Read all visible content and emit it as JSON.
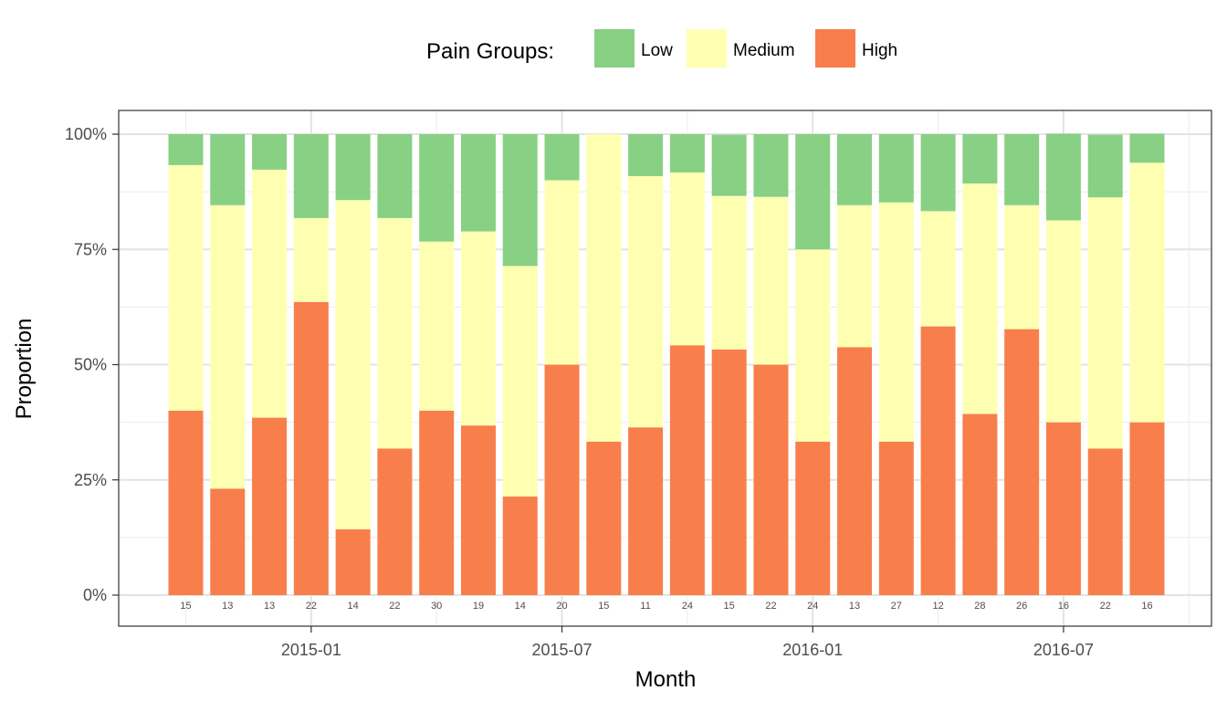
{
  "chart_data": {
    "type": "bar",
    "stacked": true,
    "legend": {
      "title": "Pain Groups:",
      "position": "top"
    },
    "xlabel": "Month",
    "ylabel": "Proportion",
    "ylim": [
      0,
      1
    ],
    "y_ticks": [
      "0%",
      "25%",
      "50%",
      "75%",
      "100%"
    ],
    "x_tick_labels": [
      "2015-01",
      "2015-07",
      "2016-01",
      "2016-07"
    ],
    "grid": true,
    "categories": [
      "2014-10",
      "2014-11",
      "2014-12",
      "2015-01",
      "2015-02",
      "2015-03",
      "2015-04",
      "2015-05",
      "2015-06",
      "2015-07",
      "2015-08",
      "2015-09",
      "2015-10",
      "2015-11",
      "2015-12",
      "2016-01",
      "2016-02",
      "2016-03",
      "2016-04",
      "2016-05",
      "2016-06",
      "2016-07",
      "2016-08",
      "2016-09"
    ],
    "counts": [
      15,
      13,
      13,
      22,
      14,
      22,
      30,
      19,
      14,
      20,
      15,
      11,
      24,
      15,
      22,
      24,
      13,
      27,
      12,
      28,
      26,
      16,
      22,
      16
    ],
    "series": [
      {
        "name": "High",
        "color": "#f87e4b",
        "values": [
          0.4,
          0.231,
          0.385,
          0.636,
          0.143,
          0.318,
          0.4,
          0.368,
          0.214,
          0.5,
          0.333,
          0.364,
          0.542,
          0.533,
          0.5,
          0.333,
          0.538,
          0.333,
          0.583,
          0.393,
          0.577,
          0.375,
          0.318,
          0.375
        ]
      },
      {
        "name": "Medium",
        "color": "#ffffb2",
        "values": [
          0.533,
          0.615,
          0.538,
          0.182,
          0.714,
          0.5,
          0.367,
          0.421,
          0.5,
          0.4,
          0.667,
          0.545,
          0.375,
          0.333,
          0.364,
          0.417,
          0.308,
          0.519,
          0.25,
          0.5,
          0.269,
          0.438,
          0.545,
          0.563
        ]
      },
      {
        "name": "Low",
        "color": "#88d084",
        "values": [
          0.067,
          0.154,
          0.077,
          0.182,
          0.143,
          0.182,
          0.233,
          0.211,
          0.286,
          0.1,
          0.0,
          0.091,
          0.083,
          0.133,
          0.136,
          0.25,
          0.154,
          0.148,
          0.167,
          0.107,
          0.154,
          0.188,
          0.136,
          0.063
        ]
      }
    ]
  }
}
